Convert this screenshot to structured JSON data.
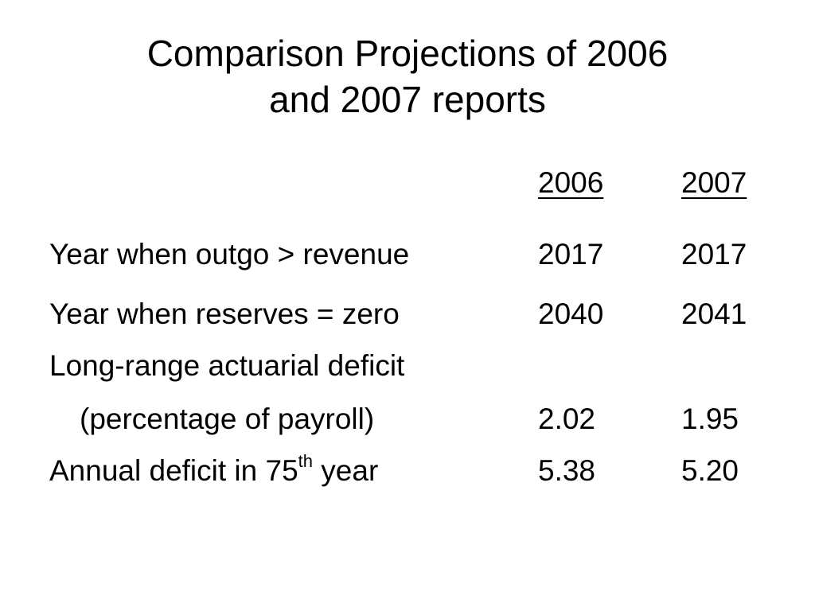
{
  "slide": {
    "title_line1": "Comparison Projections of 2006",
    "title_line2": "and 2007 reports"
  },
  "table": {
    "headers": [
      "2006",
      "2007"
    ],
    "rows": [
      {
        "label": "Year when outgo > revenue",
        "v2006": "2017",
        "v2007": "2017"
      },
      {
        "label": "Year when reserves = zero",
        "v2006": "2040",
        "v2007": "2041"
      },
      {
        "label": "Long-range actuarial deficit",
        "v2006": "",
        "v2007": ""
      },
      {
        "label": "(percentage of payroll)",
        "v2006": "2.02",
        "v2007": "1.95"
      },
      {
        "label_prefix": "Annual deficit in 75",
        "label_sup": "th",
        "label_suffix": " year",
        "v2006": "5.38",
        "v2007": "5.20"
      }
    ]
  }
}
